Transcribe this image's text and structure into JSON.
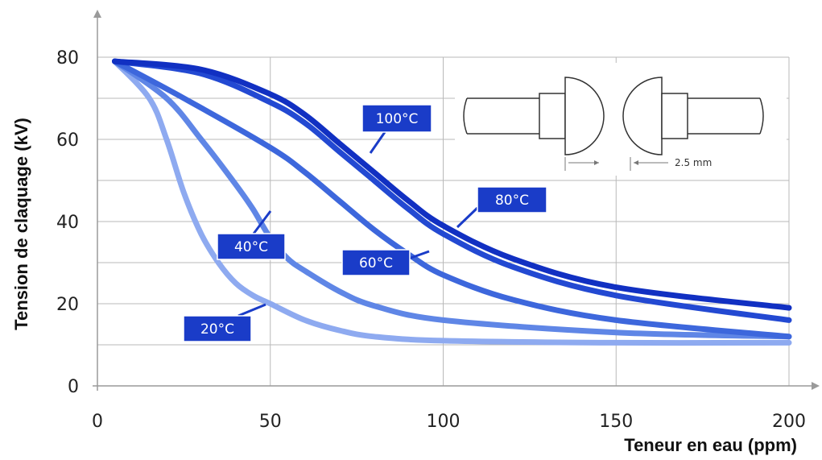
{
  "chart_data": {
    "type": "line",
    "xlabel": "Teneur en eau (ppm)",
    "ylabel": "Tension de claquage (kV)",
    "xlim": [
      0,
      200
    ],
    "ylim": [
      0,
      80
    ],
    "xticks": [
      0,
      50,
      100,
      150,
      200
    ],
    "yticks": [
      0,
      20,
      40,
      60,
      80
    ],
    "grid": true,
    "series": [
      {
        "name": "20°C",
        "color": "#8eaaf0",
        "x": [
          5,
          15,
          20,
          25,
          30,
          35,
          40,
          45,
          50,
          60,
          70,
          80,
          100,
          150,
          200
        ],
        "y": [
          79,
          70,
          60,
          47,
          37,
          30,
          25,
          22,
          20,
          16,
          13.5,
          12,
          11,
          10.5,
          10.5
        ]
      },
      {
        "name": "40°C",
        "color": "#5f86e6",
        "x": [
          5,
          20,
          30,
          40,
          45,
          50,
          55,
          60,
          70,
          80,
          100,
          150,
          200
        ],
        "y": [
          79,
          70,
          60,
          49,
          43,
          36,
          31,
          28,
          23,
          19.5,
          16,
          13,
          12
        ]
      },
      {
        "name": "60°C",
        "color": "#3d67dc",
        "x": [
          5,
          25,
          50,
          60,
          70,
          80,
          90,
          100,
          120,
          150,
          200
        ],
        "y": [
          79,
          70,
          58,
          52,
          45,
          38,
          32,
          27,
          21,
          16,
          12
        ]
      },
      {
        "name": "80°C",
        "color": "#2349d2",
        "x": [
          5,
          30,
          50,
          60,
          70,
          80,
          90,
          100,
          120,
          150,
          200
        ],
        "y": [
          79,
          76,
          69,
          64,
          57,
          50,
          43,
          37,
          29,
          22,
          16
        ]
      },
      {
        "name": "100°C",
        "color": "#1130c2",
        "x": [
          5,
          30,
          50,
          60,
          70,
          80,
          90,
          100,
          120,
          150,
          200
        ],
        "y": [
          79,
          77,
          71,
          66,
          59,
          52,
          45,
          39,
          31,
          24,
          19
        ]
      }
    ],
    "labels": [
      "20°C",
      "40°C",
      "60°C",
      "80°C",
      "100°C"
    ]
  },
  "inset": {
    "dimension": "2.5 mm"
  }
}
